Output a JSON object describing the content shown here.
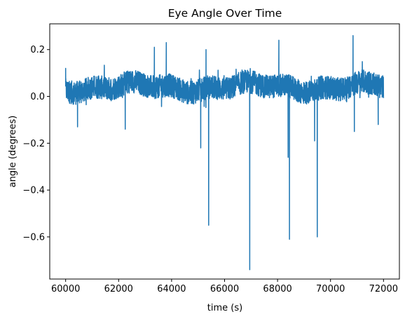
{
  "chart_data": {
    "type": "line",
    "title": "Eye Angle Over Time",
    "xlabel": "time (s)",
    "ylabel": "angle (degrees)",
    "xlim": [
      59400,
      72600
    ],
    "ylim": [
      -0.78,
      0.31
    ],
    "x_ticks": [
      60000,
      62000,
      64000,
      66000,
      68000,
      70000,
      72000
    ],
    "x_tick_labels": [
      "60000",
      "62000",
      "64000",
      "66000",
      "68000",
      "70000",
      "72000"
    ],
    "y_ticks": [
      -0.6,
      -0.4,
      -0.2,
      0.0,
      0.2
    ],
    "y_tick_labels": [
      "−0.6",
      "−0.4",
      "−0.2",
      "0.0",
      "0.2"
    ],
    "grid": false,
    "legend": "none",
    "series": [
      {
        "color": "#1f77b4",
        "baseline": 0.04,
        "noise_amplitude": 0.05,
        "x_start": 60000,
        "x_end": 72000,
        "events": [
          {
            "x": 60000,
            "y": 0.12
          },
          {
            "x": 60450,
            "y": -0.13
          },
          {
            "x": 62250,
            "y": -0.14
          },
          {
            "x": 63350,
            "y": 0.21
          },
          {
            "x": 63800,
            "y": 0.23
          },
          {
            "x": 65100,
            "y": -0.22
          },
          {
            "x": 65300,
            "y": 0.2
          },
          {
            "x": 65400,
            "y": -0.55
          },
          {
            "x": 66950,
            "y": -0.74
          },
          {
            "x": 68050,
            "y": 0.24
          },
          {
            "x": 68400,
            "y": -0.26
          },
          {
            "x": 68450,
            "y": -0.61
          },
          {
            "x": 69400,
            "y": -0.19
          },
          {
            "x": 69500,
            "y": -0.6
          },
          {
            "x": 70850,
            "y": 0.26
          },
          {
            "x": 70900,
            "y": -0.15
          },
          {
            "x": 71800,
            "y": -0.12
          }
        ]
      }
    ]
  }
}
